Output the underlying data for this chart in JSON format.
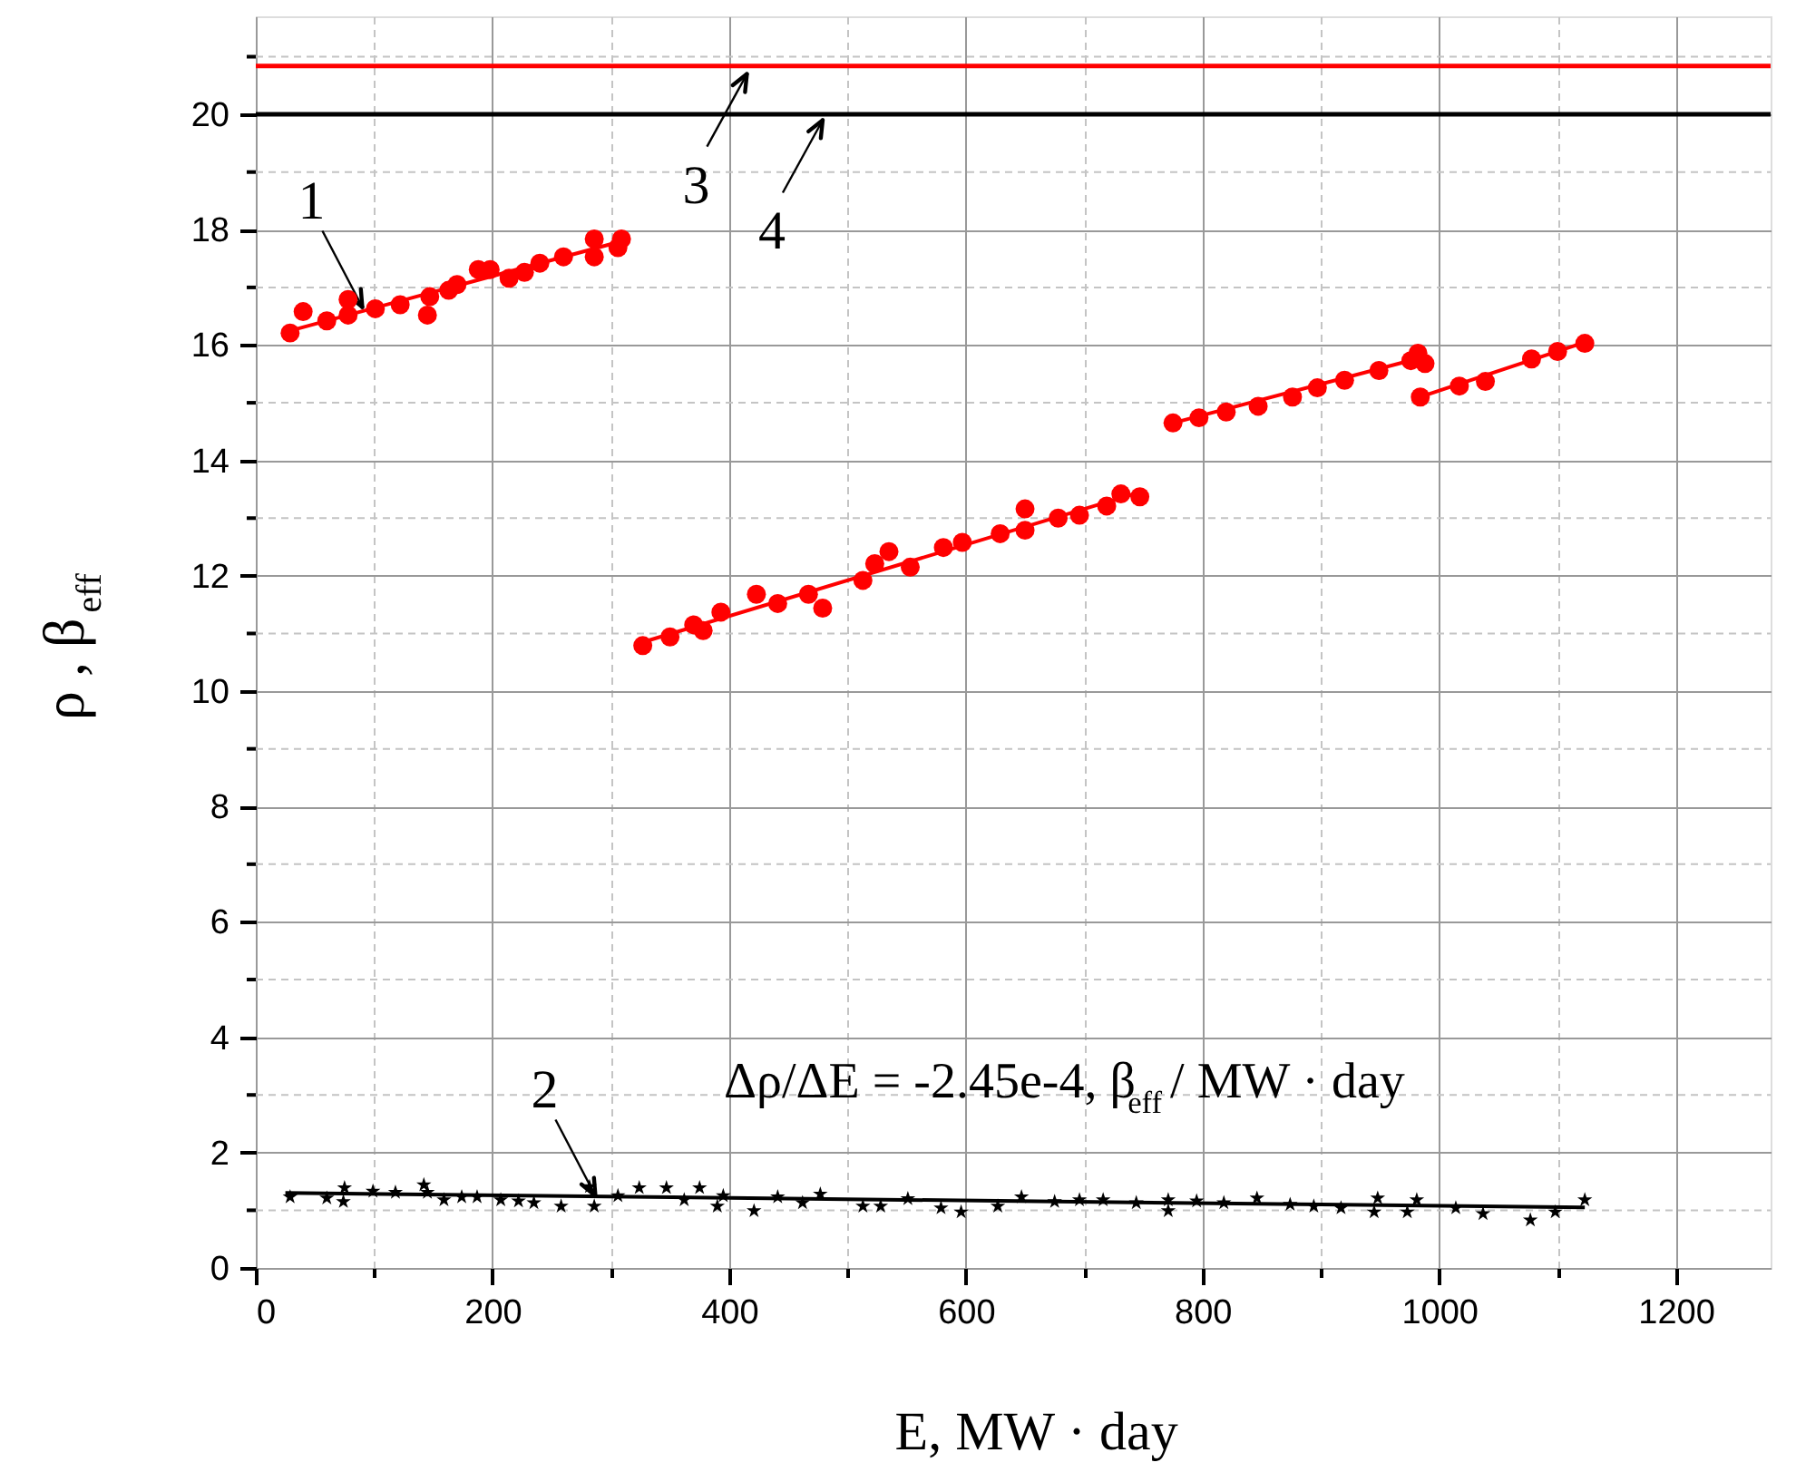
{
  "chart_data": {
    "type": "scatter",
    "xlabel": "E, MW · day",
    "ylabel": "ρ , β$_{eff}$",
    "xlim": [
      0,
      1280
    ],
    "ylim": [
      0,
      21.7
    ],
    "xticks": [
      0,
      {
        "value": 100,
        "label": null
      },
      200,
      {
        "value": 300,
        "label": null
      },
      400,
      {
        "value": 500,
        "label": null
      },
      600,
      {
        "value": 700,
        "label": null
      },
      800,
      {
        "value": 900,
        "label": null
      },
      1000,
      {
        "value": 1100,
        "label": null
      },
      1200
    ],
    "yticks": [
      0,
      {
        "value": 1,
        "label": null
      },
      2,
      {
        "value": 3,
        "label": null
      },
      4,
      {
        "value": 5,
        "label": null
      },
      6,
      {
        "value": 7,
        "label": null
      },
      8,
      {
        "value": 9,
        "label": null
      },
      10,
      {
        "value": 11,
        "label": null
      },
      12,
      {
        "value": 13,
        "label": null
      },
      14,
      {
        "value": 15,
        "label": null
      },
      16,
      {
        "value": 17,
        "label": null
      },
      18,
      {
        "value": 19,
        "label": null
      },
      20,
      {
        "value": 21,
        "label": null
      }
    ],
    "grid": true,
    "series": [
      {
        "type": "scatter",
        "marker": "circle",
        "color": "#ff0000",
        "x": [
          29,
          40,
          60,
          78,
          78,
          101,
          122,
          145,
          147,
          163,
          170,
          188,
          198,
          214,
          227,
          240,
          260,
          286,
          286,
          309,
          306,
          327,
          350,
          370,
          378,
          393,
          423,
          441,
          467,
          479,
          513,
          523,
          535,
          553,
          581,
          597,
          629,
          650,
          650,
          678,
          696,
          719,
          731,
          747,
          775,
          797,
          820,
          847,
          876,
          897,
          920,
          949,
          976,
          982,
          988,
          984,
          1017,
          1039,
          1078,
          1100,
          1123
        ],
        "values": [
          16.21,
          16.58,
          16.42,
          16.79,
          16.52,
          16.63,
          16.7,
          16.52,
          16.84,
          16.95,
          17.05,
          17.31,
          17.31,
          17.16,
          17.26,
          17.42,
          17.53,
          17.84,
          17.53,
          17.84,
          17.69,
          10.79,
          10.94,
          11.15,
          11.05,
          11.37,
          11.68,
          11.52,
          11.68,
          11.44,
          11.92,
          12.21,
          12.42,
          12.15,
          12.49,
          12.58,
          12.73,
          13.16,
          12.79,
          13.0,
          13.05,
          13.21,
          13.42,
          13.37,
          14.65,
          14.74,
          14.84,
          14.94,
          15.1,
          15.26,
          15.39,
          15.56,
          15.73,
          15.86,
          15.68,
          15.1,
          15.29,
          15.37,
          15.76,
          15.89,
          16.03
        ]
      },
      {
        "type": "line",
        "color": "#ff0000",
        "x": [
          29,
          309
        ],
        "values": [
          16.25,
          17.8
        ]
      },
      {
        "type": "line",
        "color": "#ff0000",
        "x": [
          327,
          747
        ],
        "values": [
          10.85,
          13.45
        ]
      },
      {
        "type": "line",
        "color": "#ff0000",
        "x": [
          775,
          988
        ],
        "values": [
          14.65,
          15.8
        ]
      },
      {
        "type": "line",
        "color": "#ff0000",
        "x": [
          984,
          1123
        ],
        "values": [
          15.1,
          16.05
        ]
      },
      {
        "type": "scatter",
        "marker": "star",
        "color": "#000000",
        "x": [
          29,
          60,
          75,
          74,
          99,
          118,
          142,
          145,
          159,
          174,
          187,
          207,
          222,
          235,
          258,
          282,
          286,
          306,
          324,
          347,
          362,
          375,
          390,
          395,
          421,
          441,
          462,
          477,
          513,
          528,
          551,
          579,
          596,
          627,
          647,
          675,
          696,
          716,
          744,
          771,
          771,
          795,
          818,
          846,
          874,
          894,
          917,
          948,
          945,
          973,
          981,
          1014,
          1037,
          1077,
          1098,
          1123
        ],
        "values": [
          1.23,
          1.21,
          1.39,
          1.15,
          1.33,
          1.31,
          1.44,
          1.31,
          1.18,
          1.23,
          1.23,
          1.18,
          1.16,
          1.13,
          1.07,
          1.41,
          1.07,
          1.25,
          1.39,
          1.39,
          1.18,
          1.39,
          1.07,
          1.25,
          0.99,
          1.23,
          1.13,
          1.28,
          1.07,
          1.07,
          1.2,
          1.04,
          0.97,
          1.07,
          1.23,
          1.15,
          1.18,
          1.18,
          1.13,
          1.18,
          0.99,
          1.16,
          1.13,
          1.21,
          1.1,
          1.07,
          1.04,
          1.21,
          0.97,
          0.97,
          1.18,
          1.04,
          0.94,
          0.83,
          0.97,
          1.18
        ]
      },
      {
        "type": "line",
        "color": "#000000",
        "x": [
          25,
          1123
        ],
        "values": [
          1.3,
          1.05
        ]
      }
    ],
    "ref_lines": [
      {
        "axis": "y",
        "value": 20.84,
        "color": "#ff0000"
      },
      {
        "axis": "y",
        "value": 20,
        "color": "#000000"
      }
    ],
    "annotations": [
      {
        "text": "1",
        "x": 90,
        "y": 16.66
      },
      {
        "text": "2",
        "x": 287,
        "y": 1.25
      },
      {
        "text": "3",
        "x": 415,
        "y": 20.7
      },
      {
        "text": "4",
        "x": 479,
        "y": 19.9
      },
      "Δρ/ΔE = -2.45e-4, β$_{eff}$/ MW · day"
    ]
  }
}
